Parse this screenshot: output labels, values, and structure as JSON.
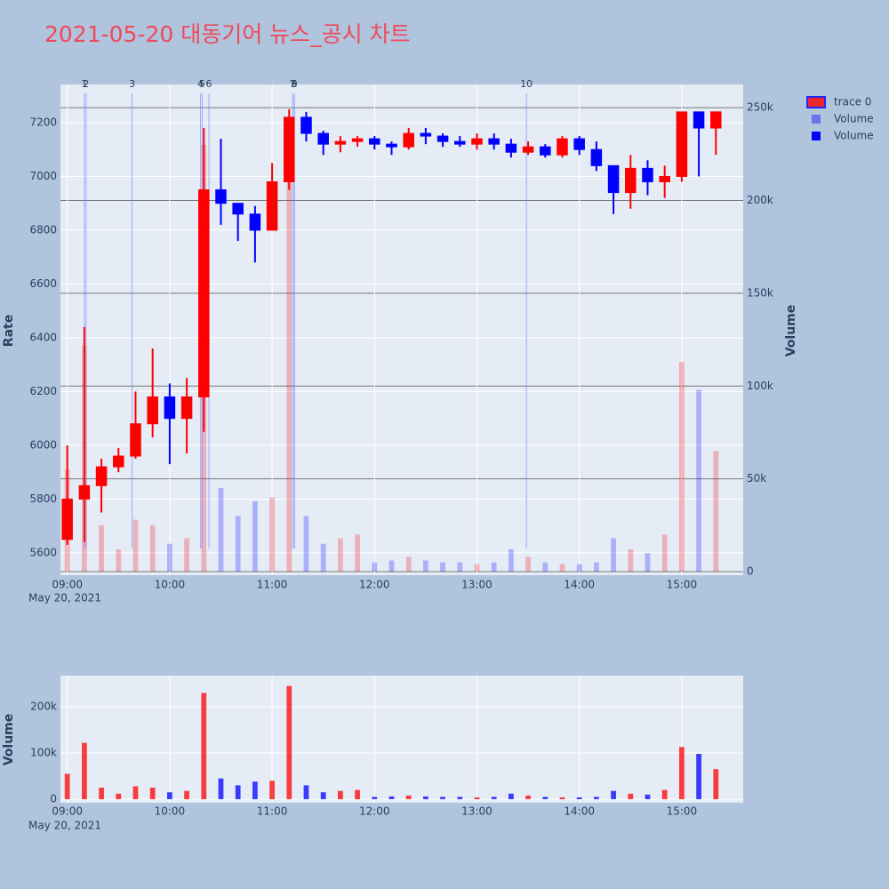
{
  "chart_data": {
    "type": "candlestick",
    "title": "2021-05-20 대동기어 뉴스_공시 차트",
    "name": "trace 0",
    "increasing_color": "#ff0000",
    "decreasing_color": "#0000ff",
    "x": [
      "2021-05-20 09:00",
      "2021-05-20 09:10",
      "2021-05-20 09:20",
      "2021-05-20 09:30",
      "2021-05-20 09:40",
      "2021-05-20 09:50",
      "2021-05-20 10:00",
      "2021-05-20 10:10",
      "2021-05-20 10:20",
      "2021-05-20 10:30",
      "2021-05-20 10:40",
      "2021-05-20 10:50",
      "2021-05-20 11:00",
      "2021-05-20 11:10",
      "2021-05-20 11:20",
      "2021-05-20 11:30",
      "2021-05-20 11:40",
      "2021-05-20 11:50",
      "2021-05-20 12:00",
      "2021-05-20 12:10",
      "2021-05-20 12:20",
      "2021-05-20 12:30",
      "2021-05-20 12:40",
      "2021-05-20 12:50",
      "2021-05-20 13:00",
      "2021-05-20 13:10",
      "2021-05-20 13:20",
      "2021-05-20 13:30",
      "2021-05-20 13:40",
      "2021-05-20 13:50",
      "2021-05-20 14:00",
      "2021-05-20 14:10",
      "2021-05-20 14:20",
      "2021-05-20 14:30",
      "2021-05-20 14:40",
      "2021-05-20 14:50",
      "2021-05-20 15:00",
      "2021-05-20 15:10",
      "2021-05-20 15:20"
    ],
    "open": [
      5650,
      5800,
      5850,
      5920,
      5960,
      6080,
      6180,
      6100,
      6180,
      6950,
      6900,
      6860,
      6800,
      6980,
      7220,
      7160,
      7120,
      7130,
      7140,
      7120,
      7110,
      7160,
      7150,
      7130,
      7120,
      7140,
      7120,
      7090,
      7110,
      7080,
      7140,
      7100,
      7040,
      6940,
      7030,
      6980,
      7000,
      7240,
      7180
    ],
    "high": [
      6000,
      6440,
      5950,
      5990,
      6200,
      6360,
      6230,
      6250,
      7180,
      7140,
      6900,
      6890,
      7050,
      7250,
      7240,
      7170,
      7150,
      7150,
      7150,
      7130,
      7180,
      7180,
      7160,
      7150,
      7160,
      7160,
      7140,
      7130,
      7120,
      7150,
      7150,
      7130,
      7040,
      7080,
      7060,
      7040,
      7240,
      7240,
      7240
    ],
    "low": [
      5630,
      5640,
      5750,
      5900,
      5950,
      6030,
      5930,
      5970,
      6050,
      6820,
      6760,
      6680,
      6800,
      6950,
      7130,
      7080,
      7090,
      7110,
      7100,
      7080,
      7100,
      7120,
      7110,
      7110,
      7100,
      7100,
      7070,
      7080,
      7070,
      7070,
      7080,
      7020,
      6860,
      6880,
      6930,
      6920,
      6980,
      7000,
      7080
    ],
    "close": [
      5800,
      5850,
      5920,
      5960,
      6080,
      6180,
      6100,
      6180,
      6950,
      6900,
      6860,
      6800,
      6980,
      7220,
      7160,
      7120,
      7130,
      7140,
      7120,
      7110,
      7160,
      7150,
      7130,
      7120,
      7140,
      7120,
      7090,
      7110,
      7080,
      7140,
      7100,
      7040,
      6940,
      7030,
      6980,
      7000,
      7240,
      7180,
      7240
    ],
    "volume_overlay": {
      "name": "Volume"
    },
    "volume": {
      "name": "Volume",
      "values": [
        55000,
        122000,
        25000,
        12000,
        28000,
        25000,
        15000,
        18000,
        230000,
        45000,
        30000,
        38000,
        40000,
        245000,
        30000,
        15000,
        18000,
        20000,
        5000,
        6000,
        8000,
        6000,
        5000,
        5000,
        4000,
        5000,
        12000,
        8000,
        5000,
        4000,
        4000,
        5000,
        18000,
        12000,
        10000,
        20000,
        113000,
        98000,
        65000
      ]
    },
    "xlim": [
      "2021-05-20 08:56",
      "2021-05-20 15:36"
    ],
    "xticks": [
      {
        "value": "2021-05-20 09:00",
        "label": "09:00"
      },
      {
        "value": "2021-05-20 10:00",
        "label": "10:00"
      },
      {
        "value": "2021-05-20 11:00",
        "label": "11:00"
      },
      {
        "value": "2021-05-20 12:00",
        "label": "12:00"
      },
      {
        "value": "2021-05-20 13:00",
        "label": "13:00"
      },
      {
        "value": "2021-05-20 14:00",
        "label": "14:00"
      },
      {
        "value": "2021-05-20 15:00",
        "label": "15:00"
      }
    ],
    "x_date_label": "May 20, 2021",
    "ylabel": "Rate",
    "ylim": [
      5517,
      7342
    ],
    "yticks": [
      5600,
      5800,
      6000,
      6200,
      6400,
      6600,
      6800,
      7000,
      7200
    ],
    "y2label": "Volume",
    "y2lim": [
      -1900,
      262500
    ],
    "y2ticks": [
      0,
      {
        "value": 50000,
        "label": "50k"
      },
      {
        "value": 100000,
        "label": "100k"
      },
      {
        "value": 150000,
        "label": "150k"
      },
      {
        "value": 200000,
        "label": "200k"
      },
      {
        "value": 250000,
        "label": "250k"
      }
    ],
    "sub_ylabel": "Volume",
    "sub_ylim": [
      -7700,
      267300
    ],
    "sub_yticks": [
      0,
      {
        "value": 100000,
        "label": "100k"
      },
      {
        "value": 200000,
        "label": "200k"
      }
    ],
    "annotations": [
      {
        "x": "2021-05-20 09:10",
        "label": "1"
      },
      {
        "x": "2021-05-20 09:11",
        "label": "2"
      },
      {
        "x": "2021-05-20 09:38",
        "label": "3"
      },
      {
        "x": "2021-05-20 10:18",
        "label": "4"
      },
      {
        "x": "2021-05-20 10:19",
        "label": "5"
      },
      {
        "x": "2021-05-20 10:23",
        "label": "6"
      },
      {
        "x": "2021-05-20 11:12",
        "label": "7"
      },
      {
        "x": "2021-05-20 11:13",
        "label": "8"
      },
      {
        "x": "2021-05-20 11:13",
        "label": "9"
      },
      {
        "x": "2021-05-20 13:29",
        "label": "10"
      }
    ],
    "grid": true
  }
}
